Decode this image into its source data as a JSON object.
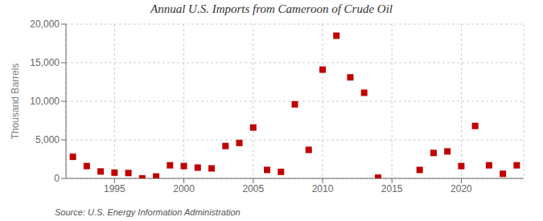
{
  "chart_data": {
    "type": "scatter",
    "title": "Annual U.S. Imports from Cameroon of Crude Oil",
    "ylabel": "Thousand Barrels",
    "source": "Source: U.S. Energy Information Administration",
    "x": [
      1992,
      1993,
      1994,
      1995,
      1996,
      1997,
      1998,
      1999,
      2000,
      2001,
      2002,
      2003,
      2004,
      2005,
      2006,
      2007,
      2008,
      2009,
      2010,
      2011,
      2012,
      2013,
      2014,
      2017,
      2018,
      2019,
      2020,
      2021,
      2022,
      2023,
      2024
    ],
    "values": [
      2800,
      1600,
      900,
      750,
      700,
      0,
      250,
      1700,
      1600,
      1400,
      1300,
      4200,
      4600,
      6600,
      1100,
      850,
      9600,
      3700,
      14100,
      18500,
      13100,
      11100,
      100,
      1100,
      3300,
      3500,
      1600,
      6800,
      1700,
      600,
      1700
    ],
    "color": "#c00000",
    "marker": "square",
    "xlim": [
      1991.5,
      2024.5
    ],
    "xticks": [
      1995,
      2000,
      2005,
      2010,
      2015,
      2020
    ],
    "ylim": [
      0,
      20000
    ],
    "yticks": [
      0,
      {
        "value": 5000,
        "label": "5,000"
      },
      {
        "value": 10000,
        "label": "10,000"
      },
      {
        "value": 15000,
        "label": "15,000"
      },
      {
        "value": 20000,
        "label": "20,000"
      }
    ],
    "grid": true
  }
}
